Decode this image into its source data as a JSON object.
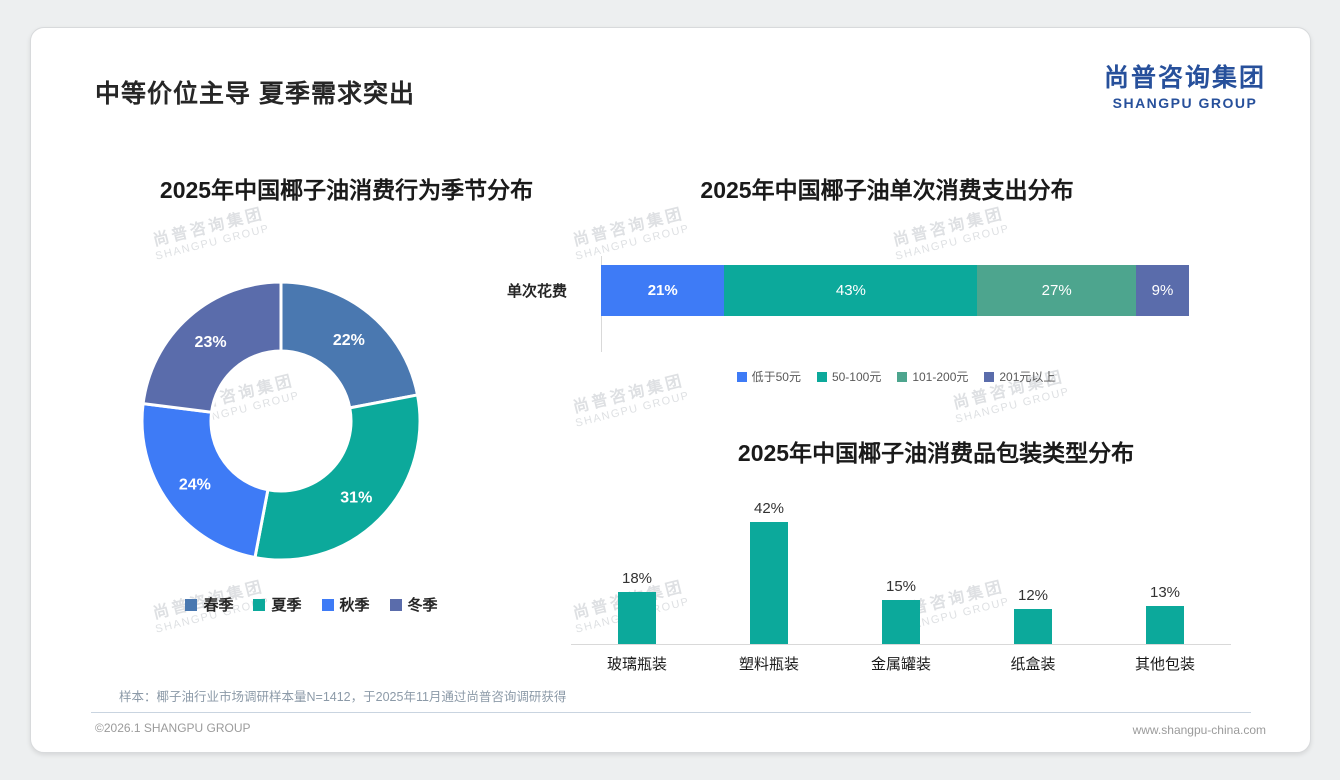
{
  "page": {
    "title": "中等价位主导 夏季需求突出"
  },
  "logo": {
    "cn": "尚普咨询集团",
    "en": "SHANGPU GROUP"
  },
  "watermark": {
    "cn": "尚普咨询集团",
    "en": "SHANGPU GROUP"
  },
  "footer": {
    "note": "样本：椰子油行业市场调研样本量N=1412，于2025年11月通过尚普咨询调研获得",
    "copyright": "©2026.1 SHANGPU GROUP",
    "website": "www.shangpu-china.com"
  },
  "chart_data": [
    {
      "type": "pie",
      "subtype": "donut",
      "title": "2025年中国椰子油消费行为季节分布",
      "categories": [
        "春季",
        "夏季",
        "秋季",
        "冬季"
      ],
      "values": [
        22,
        31,
        24,
        23
      ],
      "colors": [
        "#4a78b0",
        "#0ca99b",
        "#3e7bf6",
        "#5a6cab"
      ],
      "legend_position": "bottom"
    },
    {
      "type": "bar",
      "subtype": "stacked-horizontal",
      "title": "2025年中国椰子油单次消费支出分布",
      "category_label": "单次花费",
      "series": [
        {
          "name": "低于50元",
          "value": 21,
          "color": "#3e7bf6"
        },
        {
          "name": "50-100元",
          "value": 43,
          "color": "#0ca99b"
        },
        {
          "name": "101-200元",
          "value": 27,
          "color": "#4da58e"
        },
        {
          "name": "201元以上",
          "value": 9,
          "color": "#5a6cab"
        }
      ],
      "xlim": [
        0,
        100
      ],
      "legend_position": "bottom"
    },
    {
      "type": "bar",
      "title": "2025年中国椰子油消费品包装类型分布",
      "categories": [
        "玻璃瓶装",
        "塑料瓶装",
        "金属罐装",
        "纸盒装",
        "其他包装"
      ],
      "values": [
        18,
        42,
        15,
        12,
        13
      ],
      "color": "#0ca99b",
      "ylim": [
        0,
        45
      ],
      "grid": false
    }
  ]
}
